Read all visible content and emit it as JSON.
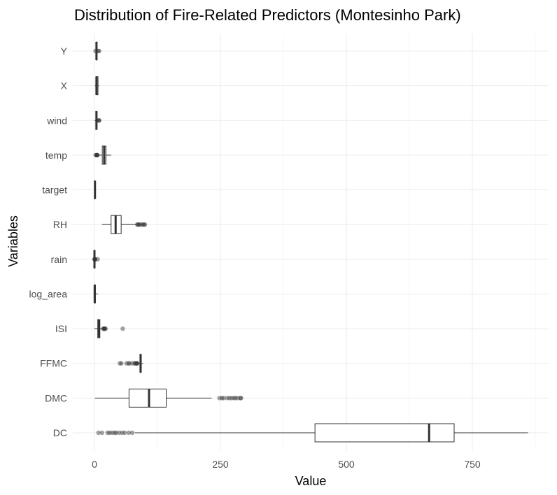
{
  "chart_data": {
    "type": "boxplot",
    "orientation": "horizontal",
    "title": "Distribution of Fire-Related Predictors (Montesinho Park)",
    "xlabel": "Value",
    "ylabel": "Variables",
    "xlim": [
      -30,
      880
    ],
    "x_ticks": [
      0,
      250,
      500,
      750
    ],
    "x_tick_labels": [
      "0",
      "250",
      "500",
      "750"
    ],
    "grid": true,
    "legend": "none",
    "colors": {
      "box_line": "#333333",
      "box_fill": "#ffffff",
      "outlier": "#333333",
      "grid": "#ebebeb",
      "tick_text": "#4d4d4d"
    },
    "categories": [
      "Y",
      "X",
      "wind",
      "temp",
      "target",
      "RH",
      "rain",
      "log_area",
      "ISI",
      "FFMC",
      "DMC",
      "DC"
    ],
    "boxes": [
      {
        "name": "Y",
        "min": 2,
        "q1": 4,
        "median": 4,
        "q3": 5,
        "max": 6,
        "outliers": [
          2,
          8,
          9
        ]
      },
      {
        "name": "X",
        "min": 1,
        "q1": 3,
        "median": 4,
        "q3": 7,
        "max": 9,
        "outliers": []
      },
      {
        "name": "wind",
        "min": 0.4,
        "q1": 2.7,
        "median": 4,
        "q3": 4.9,
        "max": 8.1,
        "outliers": [
          8.5,
          8.9,
          9.4
        ]
      },
      {
        "name": "temp",
        "min": 8.2,
        "q1": 15.5,
        "median": 19.3,
        "q3": 22.8,
        "max": 33.3,
        "outliers": [
          2.2,
          4.2,
          4.6,
          5.1,
          5.3,
          5.8
        ]
      },
      {
        "name": "target",
        "min": 0,
        "q1": 0,
        "median": 1,
        "q3": 1,
        "max": 1,
        "outliers": []
      },
      {
        "name": "RH",
        "min": 15,
        "q1": 33,
        "median": 42,
        "q3": 53,
        "max": 84,
        "outliers": [
          85,
          86,
          88,
          90,
          94,
          96,
          99,
          100
        ]
      },
      {
        "name": "rain",
        "min": 0,
        "q1": 0,
        "median": 0,
        "q3": 0,
        "max": 0,
        "outliers": [
          0.2,
          0.4,
          0.8,
          1.0,
          1.4,
          6.4
        ]
      },
      {
        "name": "log_area",
        "min": 0,
        "q1": 0,
        "median": 0.4,
        "q3": 2.0,
        "max": 7.0,
        "outliers": []
      },
      {
        "name": "ISI",
        "min": 0,
        "q1": 6.5,
        "median": 8.4,
        "q3": 10.8,
        "max": 17,
        "outliers": [
          17.9,
          18,
          19,
          20,
          21,
          22,
          56.1
        ]
      },
      {
        "name": "FFMC",
        "min": 86,
        "q1": 90.2,
        "median": 91.6,
        "q3": 92.9,
        "max": 96.2,
        "outliers": [
          50.4,
          53.4,
          63.5,
          68.2,
          69,
          75.1,
          79.5,
          81.5,
          82.1,
          83.9,
          84.4,
          85
        ]
      },
      {
        "name": "DMC",
        "min": 1.1,
        "q1": 68.6,
        "median": 108.3,
        "q3": 142.4,
        "max": 232.6,
        "outliers": [
          248,
          253,
          256,
          263,
          268,
          272,
          277,
          280,
          285,
          290,
          291
        ]
      },
      {
        "name": "DC",
        "min": 80,
        "q1": 437.7,
        "median": 664.2,
        "q3": 713.9,
        "max": 860.6,
        "outliers": [
          7.9,
          15,
          26,
          30,
          35,
          40,
          43,
          49,
          55,
          60,
          68,
          75
        ]
      }
    ]
  }
}
